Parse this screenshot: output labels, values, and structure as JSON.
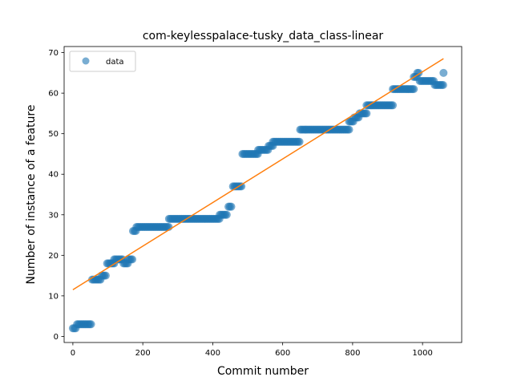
{
  "chart_data": {
    "type": "scatter",
    "title": "com-keylesspalace-tusky_data_class-linear",
    "xlabel": "Commit number",
    "ylabel": "Number of instance of a feature",
    "xlim": [
      -25,
      1112
    ],
    "ylim": [
      -1.5,
      71.5
    ],
    "xticks": [
      0,
      200,
      400,
      600,
      800,
      1000
    ],
    "yticks": [
      0,
      10,
      20,
      30,
      40,
      50,
      60,
      70
    ],
    "legend": {
      "position": "top-left",
      "entries": [
        "data"
      ]
    },
    "series": [
      {
        "name": "data",
        "kind": "scatter",
        "color": "#1f77b4",
        "segments": [
          [
            0,
            10,
            2
          ],
          [
            12,
            55,
            3
          ],
          [
            55,
            82,
            14
          ],
          [
            82,
            95,
            15
          ],
          [
            98,
            118,
            18
          ],
          [
            118,
            145,
            19
          ],
          [
            145,
            158,
            18
          ],
          [
            158,
            170,
            19
          ],
          [
            172,
            182,
            26
          ],
          [
            182,
            275,
            27
          ],
          [
            275,
            420,
            29
          ],
          [
            420,
            440,
            30
          ],
          [
            445,
            455,
            32
          ],
          [
            458,
            482,
            37
          ],
          [
            485,
            530,
            45
          ],
          [
            530,
            560,
            46
          ],
          [
            560,
            572,
            47
          ],
          [
            572,
            650,
            48
          ],
          [
            650,
            790,
            51
          ],
          [
            790,
            805,
            53
          ],
          [
            805,
            820,
            54
          ],
          [
            820,
            840,
            55
          ],
          [
            840,
            855,
            57
          ],
          [
            855,
            915,
            57
          ],
          [
            915,
            975,
            61
          ],
          [
            975,
            985,
            64
          ],
          [
            985,
            992,
            65
          ],
          [
            992,
            1035,
            63
          ],
          [
            1035,
            1060,
            62
          ]
        ],
        "extra_points": [
          [
            1060,
            65
          ]
        ]
      },
      {
        "name": "",
        "kind": "line",
        "color": "#ff7f0e",
        "points": [
          [
            0,
            11.5
          ],
          [
            1060,
            68.5
          ]
        ]
      }
    ]
  }
}
